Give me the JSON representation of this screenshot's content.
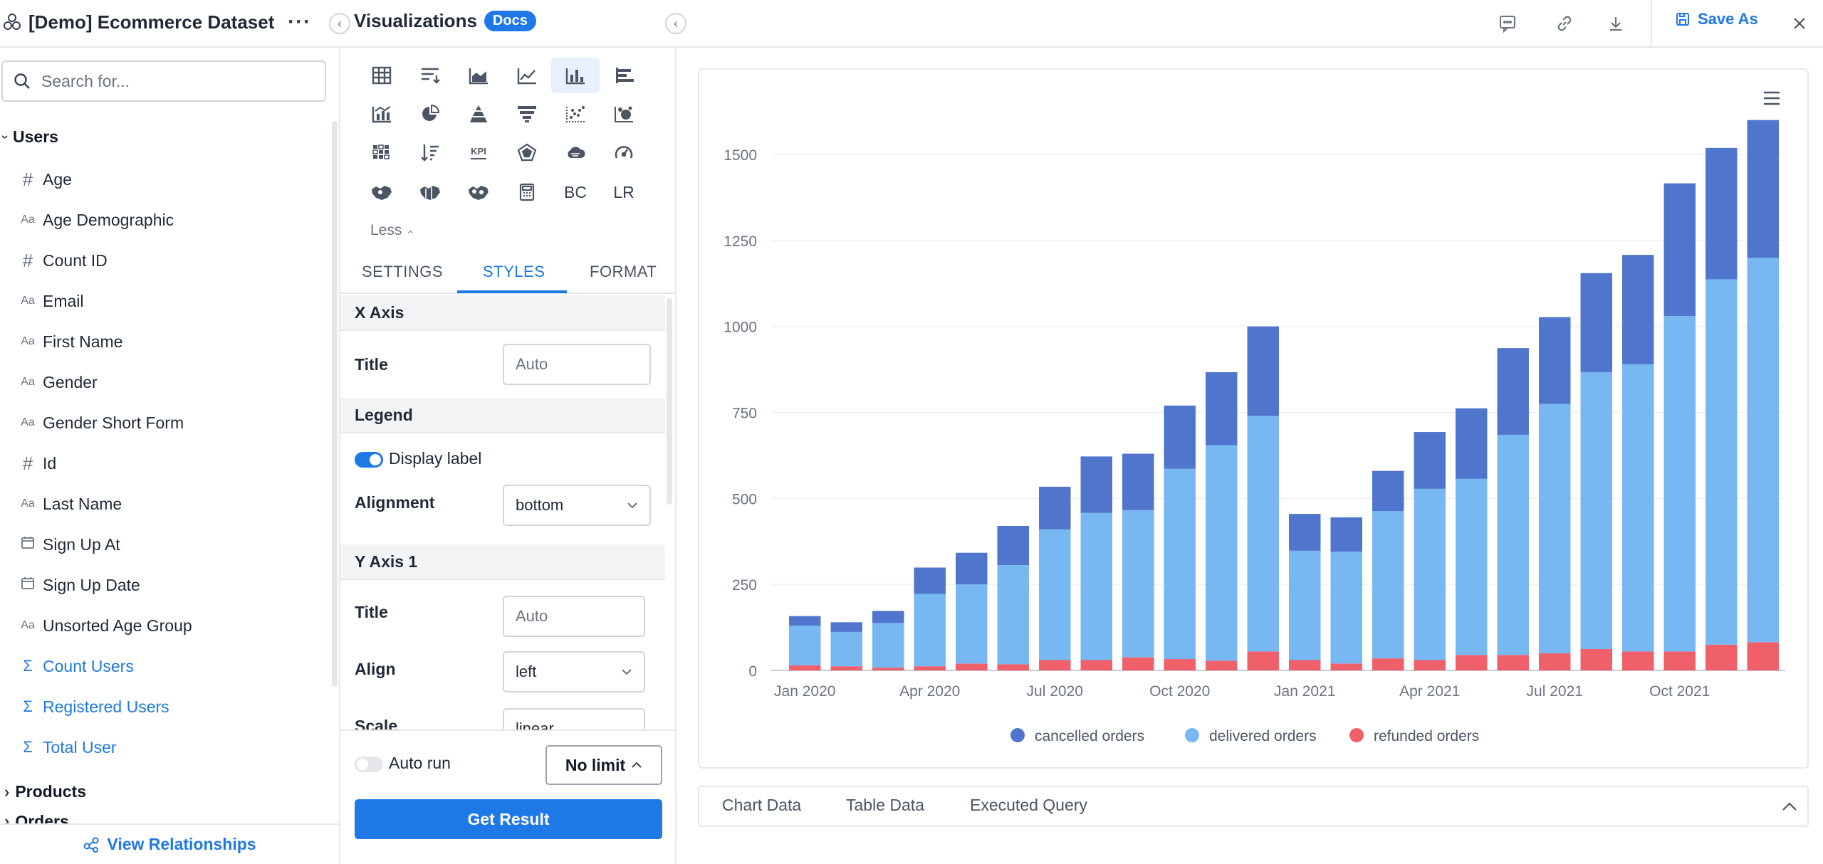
{
  "topbar": {
    "dataset_title": "[Demo] Ecommerce Dataset",
    "more_label": "···",
    "visualizations_title": "Visualizations",
    "docs_badge": "Docs",
    "save_as_label": "Save As"
  },
  "left_panel": {
    "search_placeholder": "Search for...",
    "users_section": "Users",
    "fields": [
      {
        "icon": "#",
        "label": "Age",
        "kind": "dimension"
      },
      {
        "icon": "Aa",
        "label": "Age Demographic",
        "kind": "dimension"
      },
      {
        "icon": "#",
        "label": "Count ID",
        "kind": "dimension"
      },
      {
        "icon": "Aa",
        "label": "Email",
        "kind": "dimension"
      },
      {
        "icon": "Aa",
        "label": "First Name",
        "kind": "dimension"
      },
      {
        "icon": "Aa",
        "label": "Gender",
        "kind": "dimension"
      },
      {
        "icon": "Aa",
        "label": "Gender Short Form",
        "kind": "dimension"
      },
      {
        "icon": "#",
        "label": "Id",
        "kind": "dimension"
      },
      {
        "icon": "Aa",
        "label": "Last Name",
        "kind": "dimension"
      },
      {
        "icon": "calendar",
        "label": "Sign Up At",
        "kind": "dimension"
      },
      {
        "icon": "calendar",
        "label": "Sign Up Date",
        "kind": "dimension"
      },
      {
        "icon": "Aa",
        "label": "Unsorted Age Group",
        "kind": "dimension"
      },
      {
        "icon": "Σ",
        "label": "Count Users",
        "kind": "measure"
      },
      {
        "icon": "Σ",
        "label": "Registered Users",
        "kind": "measure"
      },
      {
        "icon": "Σ",
        "label": "Total User",
        "kind": "measure"
      }
    ],
    "products_section": "Products",
    "orders_section": "Orders",
    "view_relationships": "View Relationships"
  },
  "viz_panel": {
    "text_buttons": {
      "bc": "BC",
      "lr": "LR",
      "kpi": "KPI"
    },
    "less_label": "Less",
    "tabs": {
      "settings": "SETTINGS",
      "styles": "STYLES",
      "format": "FORMAT"
    },
    "styles": {
      "x_axis_header": "X Axis",
      "x_title_label": "Title",
      "x_title_placeholder": "Auto",
      "legend_header": "Legend",
      "display_label": "Display label",
      "alignment_label": "Alignment",
      "alignment_value": "bottom",
      "y_axis_header": "Y Axis 1",
      "y_title_label": "Title",
      "y_title_placeholder": "Auto",
      "align_label": "Align",
      "align_value": "left",
      "scale_label": "Scale",
      "scale_value": "linear"
    },
    "auto_run_label": "Auto run",
    "limit_label": "No limit",
    "get_result_label": "Get Result"
  },
  "result_tabs": {
    "chart_data": "Chart Data",
    "table_data": "Table Data",
    "executed_query": "Executed Query"
  },
  "colors": {
    "accent": "#1e78e6",
    "cancelled": "#4f75cc",
    "delivered": "#77b7f2",
    "refunded": "#f0606a"
  },
  "chart_data": {
    "type": "bar",
    "stacked": true,
    "title": "",
    "xlabel": "",
    "ylabel": "",
    "ylim": [
      0,
      1600
    ],
    "yticks": [
      0,
      250,
      500,
      750,
      1000,
      1250,
      1500
    ],
    "categories": [
      "Jan 2020",
      "Feb 2020",
      "Mar 2020",
      "Apr 2020",
      "May 2020",
      "Jun 2020",
      "Jul 2020",
      "Aug 2020",
      "Sep 2020",
      "Oct 2020",
      "Nov 2020",
      "Dec 2020",
      "Jan 2021",
      "Feb 2021",
      "Mar 2021",
      "Apr 2021",
      "May 2021",
      "Jun 2021",
      "Jul 2021",
      "Aug 2021",
      "Sep 2021",
      "Oct 2021",
      "Nov 2021",
      "Dec 2021"
    ],
    "xtick_labels": [
      {
        "index": 0,
        "label": "Jan 2020"
      },
      {
        "index": 3,
        "label": "Apr 2020"
      },
      {
        "index": 6,
        "label": "Jul 2020"
      },
      {
        "index": 9,
        "label": "Oct 2020"
      },
      {
        "index": 12,
        "label": "Jan 2021"
      },
      {
        "index": 15,
        "label": "Apr 2021"
      },
      {
        "index": 18,
        "label": "Jul 2021"
      },
      {
        "index": 21,
        "label": "Oct 2021"
      }
    ],
    "series": [
      {
        "name": "refunded orders",
        "color": "#f0606a",
        "values": [
          15,
          12,
          8,
          12,
          20,
          18,
          30,
          30,
          38,
          33,
          28,
          55,
          30,
          20,
          35,
          30,
          45,
          45,
          50,
          62,
          55,
          55,
          75,
          82
        ]
      },
      {
        "name": "delivered orders",
        "color": "#77b7f2",
        "values": [
          115,
          100,
          130,
          210,
          230,
          288,
          380,
          428,
          428,
          553,
          627,
          685,
          318,
          325,
          428,
          498,
          512,
          640,
          725,
          805,
          835,
          975,
          1062,
          1118
        ]
      },
      {
        "name": "cancelled orders",
        "color": "#4f75cc",
        "values": [
          28,
          28,
          35,
          77,
          92,
          114,
          124,
          164,
          164,
          184,
          212,
          260,
          107,
          100,
          117,
          165,
          205,
          252,
          252,
          288,
          318,
          386,
          382,
          400
        ]
      }
    ],
    "legend_order": [
      "cancelled orders",
      "delivered orders",
      "refunded orders"
    ],
    "legend_position": "bottom"
  }
}
